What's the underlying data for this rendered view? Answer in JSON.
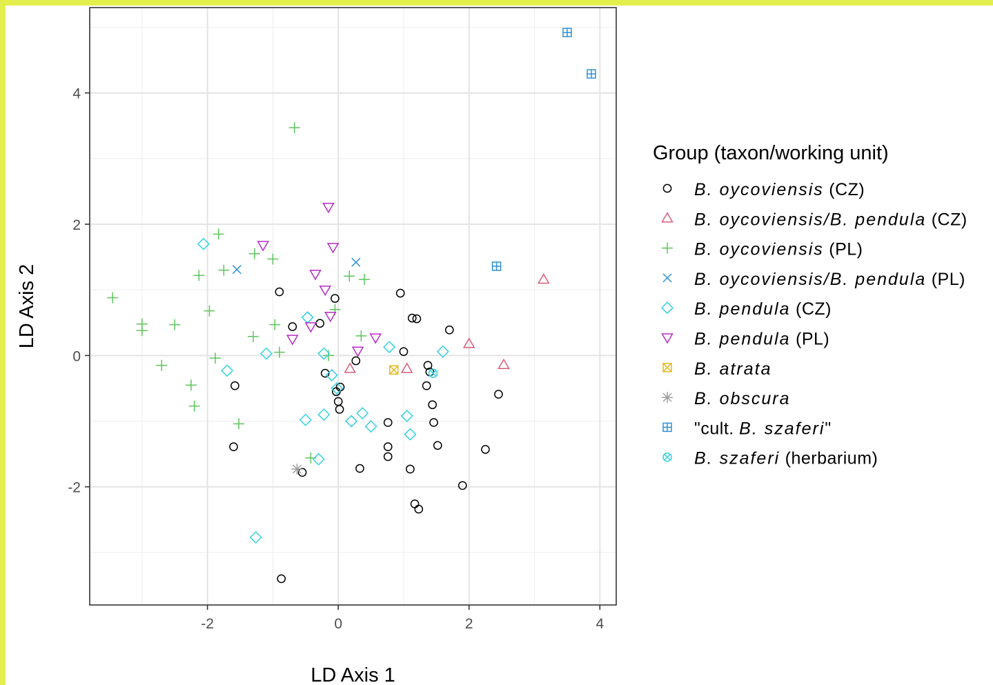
{
  "chart_data": {
    "type": "scatter",
    "xlabel": "LD Axis 1",
    "ylabel": "LD Axis 2",
    "xlim": [
      -3.8,
      4.25
    ],
    "ylim": [
      -3.8,
      5.3
    ],
    "xticks": [
      "-2",
      "0",
      "2",
      "4"
    ],
    "yticks": [
      "-2",
      "0",
      "2",
      "4"
    ],
    "grid": true,
    "legend": {
      "title": "Group (taxon/working unit)",
      "placement": "right",
      "entries": [
        {
          "italic": "B. oycoviensis",
          "suffix": " (CZ)"
        },
        {
          "italic": "B. oycoviensis/B. pendula",
          "suffix": " (CZ)"
        },
        {
          "italic": "B. oycoviensis",
          "suffix": " (PL)"
        },
        {
          "italic": "B. oycoviensis/B. pendula",
          "suffix": " (PL)"
        },
        {
          "italic": "B. pendula",
          "suffix": " (CZ)"
        },
        {
          "italic": "B. pendula",
          "suffix": " (PL)"
        },
        {
          "italic": "B. atrata",
          "suffix": ""
        },
        {
          "italic": "B. obscura",
          "suffix": ""
        },
        {
          "prefix": "\"cult. ",
          "italic": "B. szaferi",
          "suffix": "\""
        },
        {
          "italic": "B. szaferi",
          "suffix": " (herbarium)"
        }
      ]
    },
    "series": [
      {
        "shape": "circle",
        "color": "#000000",
        "points": [
          [
            -0.9,
            0.97
          ],
          [
            -0.7,
            0.44
          ],
          [
            -0.28,
            0.49
          ],
          [
            -0.05,
            0.87
          ],
          [
            0.95,
            0.95
          ],
          [
            1.13,
            0.57
          ],
          [
            1.2,
            0.56
          ],
          [
            1.7,
            0.39
          ],
          [
            1.0,
            0.06
          ],
          [
            0.27,
            -0.08
          ],
          [
            -0.2,
            -0.27
          ],
          [
            1.37,
            -0.15
          ],
          [
            1.4,
            -0.25
          ],
          [
            1.35,
            -0.46
          ],
          [
            -1.58,
            -0.46
          ],
          [
            -0.03,
            -0.55
          ],
          [
            0.03,
            -0.48
          ],
          [
            0.0,
            -0.7
          ],
          [
            0.02,
            -0.82
          ],
          [
            0.76,
            -1.02
          ],
          [
            1.44,
            -0.75
          ],
          [
            1.46,
            -1.02
          ],
          [
            2.45,
            -0.59
          ],
          [
            -1.6,
            -1.39
          ],
          [
            0.76,
            -1.39
          ],
          [
            0.76,
            -1.54
          ],
          [
            1.52,
            -1.37
          ],
          [
            2.25,
            -1.43
          ],
          [
            0.33,
            -1.72
          ],
          [
            1.1,
            -1.73
          ],
          [
            -0.55,
            -1.78
          ],
          [
            1.9,
            -1.98
          ],
          [
            1.17,
            -2.26
          ],
          [
            1.23,
            -2.34
          ],
          [
            -0.87,
            -3.4
          ]
        ]
      },
      {
        "shape": "triangle-up",
        "color": "#d95b7a",
        "points": [
          [
            3.14,
            1.16
          ],
          [
            2.0,
            0.18
          ],
          [
            2.53,
            -0.14
          ],
          [
            0.18,
            -0.2
          ],
          [
            1.05,
            -0.2
          ]
        ]
      },
      {
        "shape": "plus",
        "color": "#5cc45c",
        "points": [
          [
            -0.67,
            3.47
          ],
          [
            -1.83,
            1.85
          ],
          [
            -1.28,
            1.55
          ],
          [
            -1.0,
            1.47
          ],
          [
            -1.75,
            1.3
          ],
          [
            -2.13,
            1.22
          ],
          [
            0.17,
            1.21
          ],
          [
            0.4,
            1.16
          ],
          [
            -3.45,
            0.88
          ],
          [
            -0.05,
            0.7
          ],
          [
            -1.97,
            0.68
          ],
          [
            -3.0,
            0.48
          ],
          [
            -2.5,
            0.47
          ],
          [
            -0.97,
            0.47
          ],
          [
            -3.0,
            0.38
          ],
          [
            -1.3,
            0.29
          ],
          [
            0.35,
            0.3
          ],
          [
            -0.9,
            0.05
          ],
          [
            -0.15,
            0.0
          ],
          [
            -1.88,
            -0.04
          ],
          [
            -2.7,
            -0.15
          ],
          [
            -2.25,
            -0.45
          ],
          [
            -2.2,
            -0.77
          ],
          [
            -1.52,
            -1.04
          ],
          [
            -0.42,
            -1.56
          ]
        ]
      },
      {
        "shape": "x",
        "color": "#2c8fd6",
        "points": [
          [
            -1.55,
            1.31
          ],
          [
            0.27,
            1.42
          ]
        ]
      },
      {
        "shape": "diamond",
        "color": "#33d1e0",
        "points": [
          [
            -2.06,
            1.7
          ],
          [
            -0.47,
            0.58
          ],
          [
            0.78,
            0.13
          ],
          [
            1.6,
            0.06
          ],
          [
            -1.1,
            0.03
          ],
          [
            -0.22,
            0.03
          ],
          [
            -1.7,
            -0.23
          ],
          [
            -0.1,
            -0.3
          ],
          [
            -0.02,
            -0.5
          ],
          [
            0.37,
            -0.88
          ],
          [
            -0.22,
            -0.9
          ],
          [
            -0.5,
            -0.98
          ],
          [
            0.2,
            -1.0
          ],
          [
            1.05,
            -0.92
          ],
          [
            0.5,
            -1.08
          ],
          [
            1.1,
            -1.2
          ],
          [
            -0.3,
            -1.58
          ],
          [
            -1.26,
            -2.77
          ]
        ]
      },
      {
        "shape": "triangle-down",
        "color": "#b52bc4",
        "points": [
          [
            -0.15,
            2.26
          ],
          [
            -0.08,
            1.65
          ],
          [
            -1.15,
            1.68
          ],
          [
            -0.35,
            1.24
          ],
          [
            -0.2,
            1.0
          ],
          [
            -0.12,
            0.6
          ],
          [
            -0.42,
            0.44
          ],
          [
            -0.7,
            0.25
          ],
          [
            0.57,
            0.27
          ],
          [
            0.3,
            0.07
          ]
        ]
      },
      {
        "shape": "square-x",
        "color": "#e6b820",
        "points": [
          [
            0.85,
            -0.22
          ]
        ]
      },
      {
        "shape": "asterisk",
        "color": "#9e9e9e",
        "points": [
          [
            -0.63,
            -1.73
          ]
        ]
      },
      {
        "shape": "square-plus",
        "color": "#2c8fd6",
        "points": [
          [
            3.5,
            4.92
          ],
          [
            3.87,
            4.29
          ],
          [
            2.42,
            1.36
          ]
        ]
      },
      {
        "shape": "circle-x",
        "color": "#33d1e0",
        "points": [
          [
            1.45,
            -0.27
          ]
        ]
      }
    ]
  }
}
